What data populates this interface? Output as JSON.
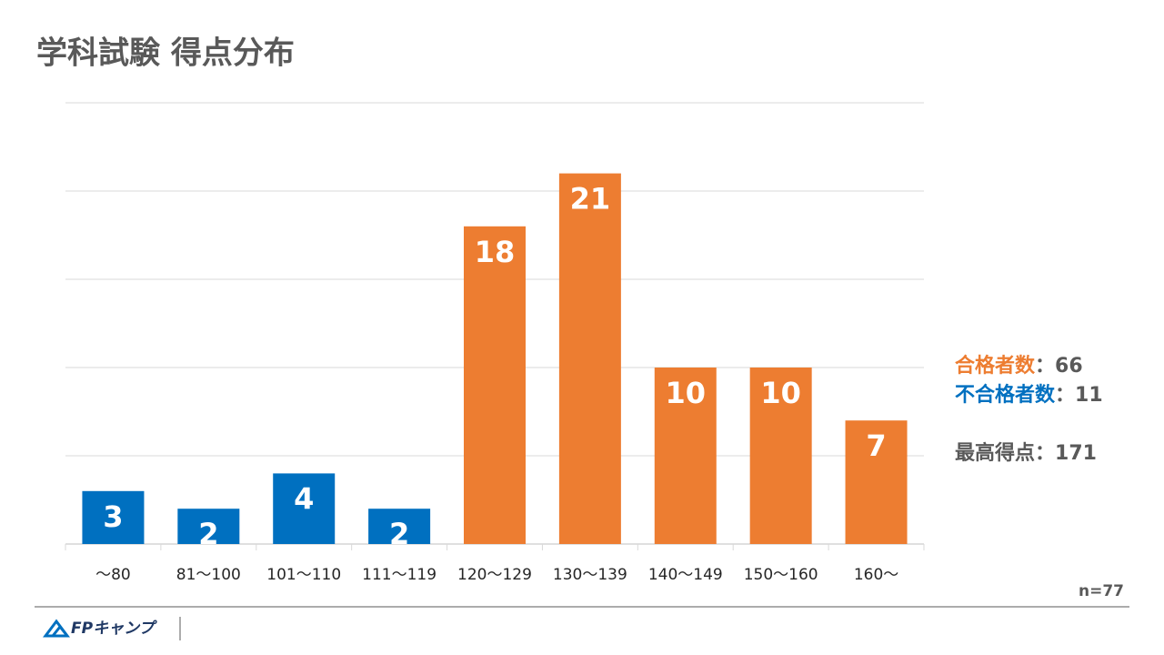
{
  "chart_data": {
    "type": "bar",
    "title": "学科試験 得点分布",
    "categories": [
      "～80",
      "81～100",
      "101～110",
      "111～119",
      "120～129",
      "130～139",
      "140～149",
      "150～160",
      "160～"
    ],
    "values": [
      3,
      2,
      4,
      2,
      18,
      21,
      10,
      10,
      7
    ],
    "colors": [
      "#0070c0",
      "#0070c0",
      "#0070c0",
      "#0070c0",
      "#ed7d31",
      "#ed7d31",
      "#ed7d31",
      "#ed7d31",
      "#ed7d31"
    ],
    "ylim": [
      0,
      25
    ],
    "yticks": [
      0,
      5,
      10,
      15,
      20,
      25
    ],
    "show_ytick_labels": false,
    "grid": true,
    "annotations": [
      {
        "label": "合格者数",
        "separator": "：",
        "value": 66,
        "color": "#ed7d31"
      },
      {
        "label": "不合格者数",
        "separator": "：",
        "value": 11,
        "color": "#0070c0"
      },
      {
        "label": "最高得点",
        "separator": "：",
        "value": 171,
        "color": "#595959"
      }
    ],
    "note": "n=77"
  },
  "footer": {
    "logo": "FPキャンプ"
  }
}
